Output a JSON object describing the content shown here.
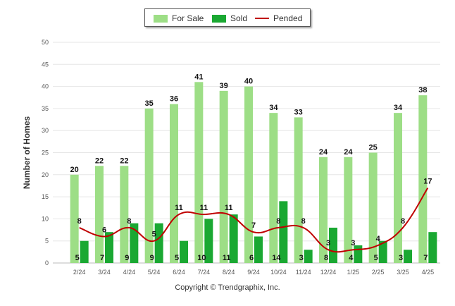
{
  "legend": {
    "for_sale": "For Sale",
    "sold": "Sold",
    "pended": "Pended"
  },
  "footer": "Copyright © Trendgraphix, Inc.",
  "colors": {
    "for_sale": "#9dde86",
    "sold": "#1aa832",
    "pended": "#c00000",
    "grid": "#e6e6e6"
  },
  "chart_data": {
    "type": "bar",
    "categories": [
      "2/24",
      "3/24",
      "4/24",
      "5/24",
      "6/24",
      "7/24",
      "8/24",
      "9/24",
      "10/24",
      "11/24",
      "12/24",
      "1/25",
      "2/25",
      "3/25",
      "4/25"
    ],
    "series": [
      {
        "name": "For Sale",
        "type": "bar",
        "values": [
          20,
          22,
          22,
          35,
          36,
          41,
          39,
          40,
          34,
          33,
          24,
          24,
          25,
          34,
          38
        ]
      },
      {
        "name": "Sold",
        "type": "bar",
        "values": [
          5,
          7,
          9,
          9,
          5,
          10,
          11,
          6,
          14,
          3,
          8,
          4,
          5,
          3,
          7
        ]
      },
      {
        "name": "Pended",
        "type": "line",
        "values": [
          8,
          6,
          8,
          5,
          11,
          11,
          11,
          7,
          8,
          8,
          3,
          3,
          4,
          8,
          17
        ]
      }
    ],
    "title": "",
    "xlabel": "",
    "ylabel": "Number of Homes",
    "ylim": [
      0,
      50
    ],
    "yticks": [
      0,
      5,
      10,
      15,
      20,
      25,
      30,
      35,
      40,
      45,
      50
    ],
    "grid": true,
    "legend_position": "top-center"
  }
}
